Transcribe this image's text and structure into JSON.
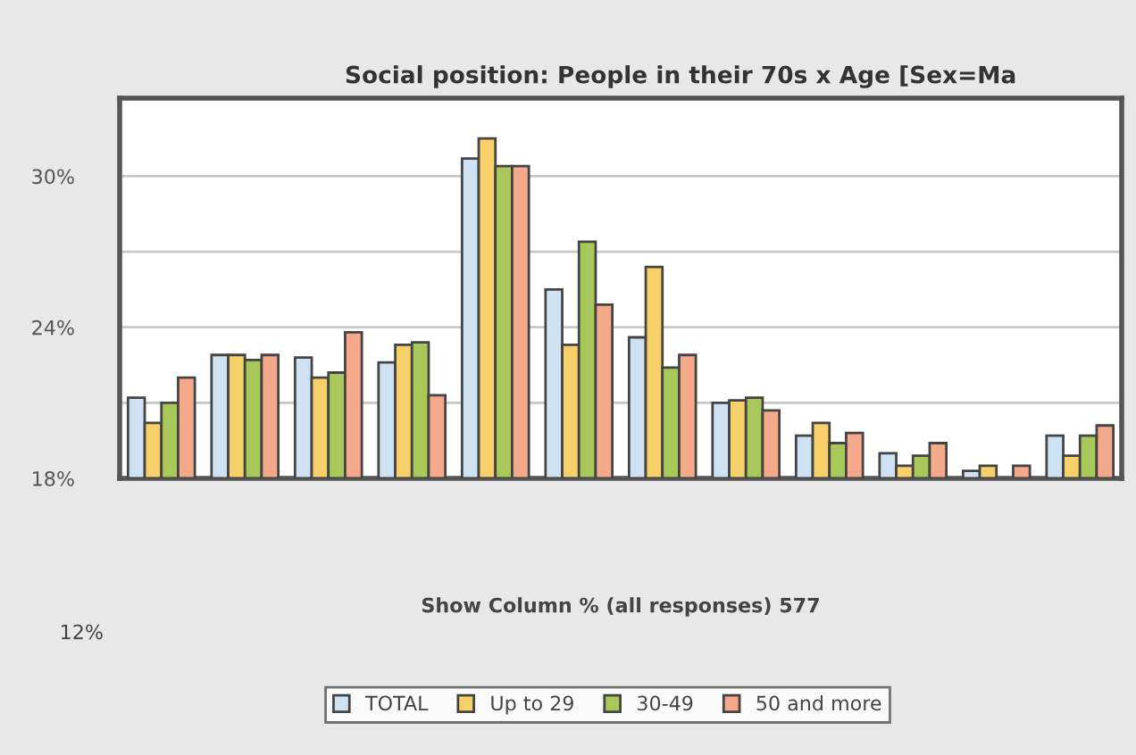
{
  "chart_data": {
    "type": "bar",
    "title": "Social position: People in their 70s x Age [Sex=Ma",
    "categories": [
      null,
      null,
      null,
      null,
      null,
      null,
      null,
      null,
      null,
      null,
      null,
      null
    ],
    "series": [
      {
        "name": "TOTAL",
        "color": "#cfe2f3",
        "values": [
          21.2,
          22.9,
          22.8,
          22.6,
          30.7,
          25.5,
          23.6,
          21.0,
          19.7,
          19.0,
          18.3,
          19.7
        ]
      },
      {
        "name": "Up to 29",
        "color": "#f7d06a",
        "values": [
          20.2,
          22.9,
          22.0,
          23.3,
          31.5,
          23.3,
          26.4,
          21.1,
          20.2,
          18.5,
          18.5,
          18.9
        ]
      },
      {
        "name": "30-49",
        "color": "#a8c95a",
        "values": [
          21.0,
          22.7,
          22.2,
          23.4,
          30.4,
          27.4,
          22.4,
          21.2,
          19.4,
          18.9,
          null,
          19.7
        ]
      },
      {
        "name": "50 and more",
        "color": "#f4a98a",
        "values": [
          22.0,
          22.9,
          23.8,
          21.3,
          30.4,
          24.9,
          22.9,
          20.7,
          19.8,
          19.4,
          18.5,
          20.1
        ]
      }
    ],
    "ylim": [
      18,
      33.1
    ],
    "yticks": [
      {
        "value": 18,
        "label": "18%"
      },
      {
        "value": 21,
        "label": null
      },
      {
        "value": 24,
        "label": "24%"
      },
      {
        "value": 27,
        "label": null
      },
      {
        "value": 30,
        "label": "30%"
      }
    ],
    "grid": "y",
    "legend": "bottom",
    "annotations": [
      "Show Column % (all responses) 577",
      "12%"
    ]
  }
}
